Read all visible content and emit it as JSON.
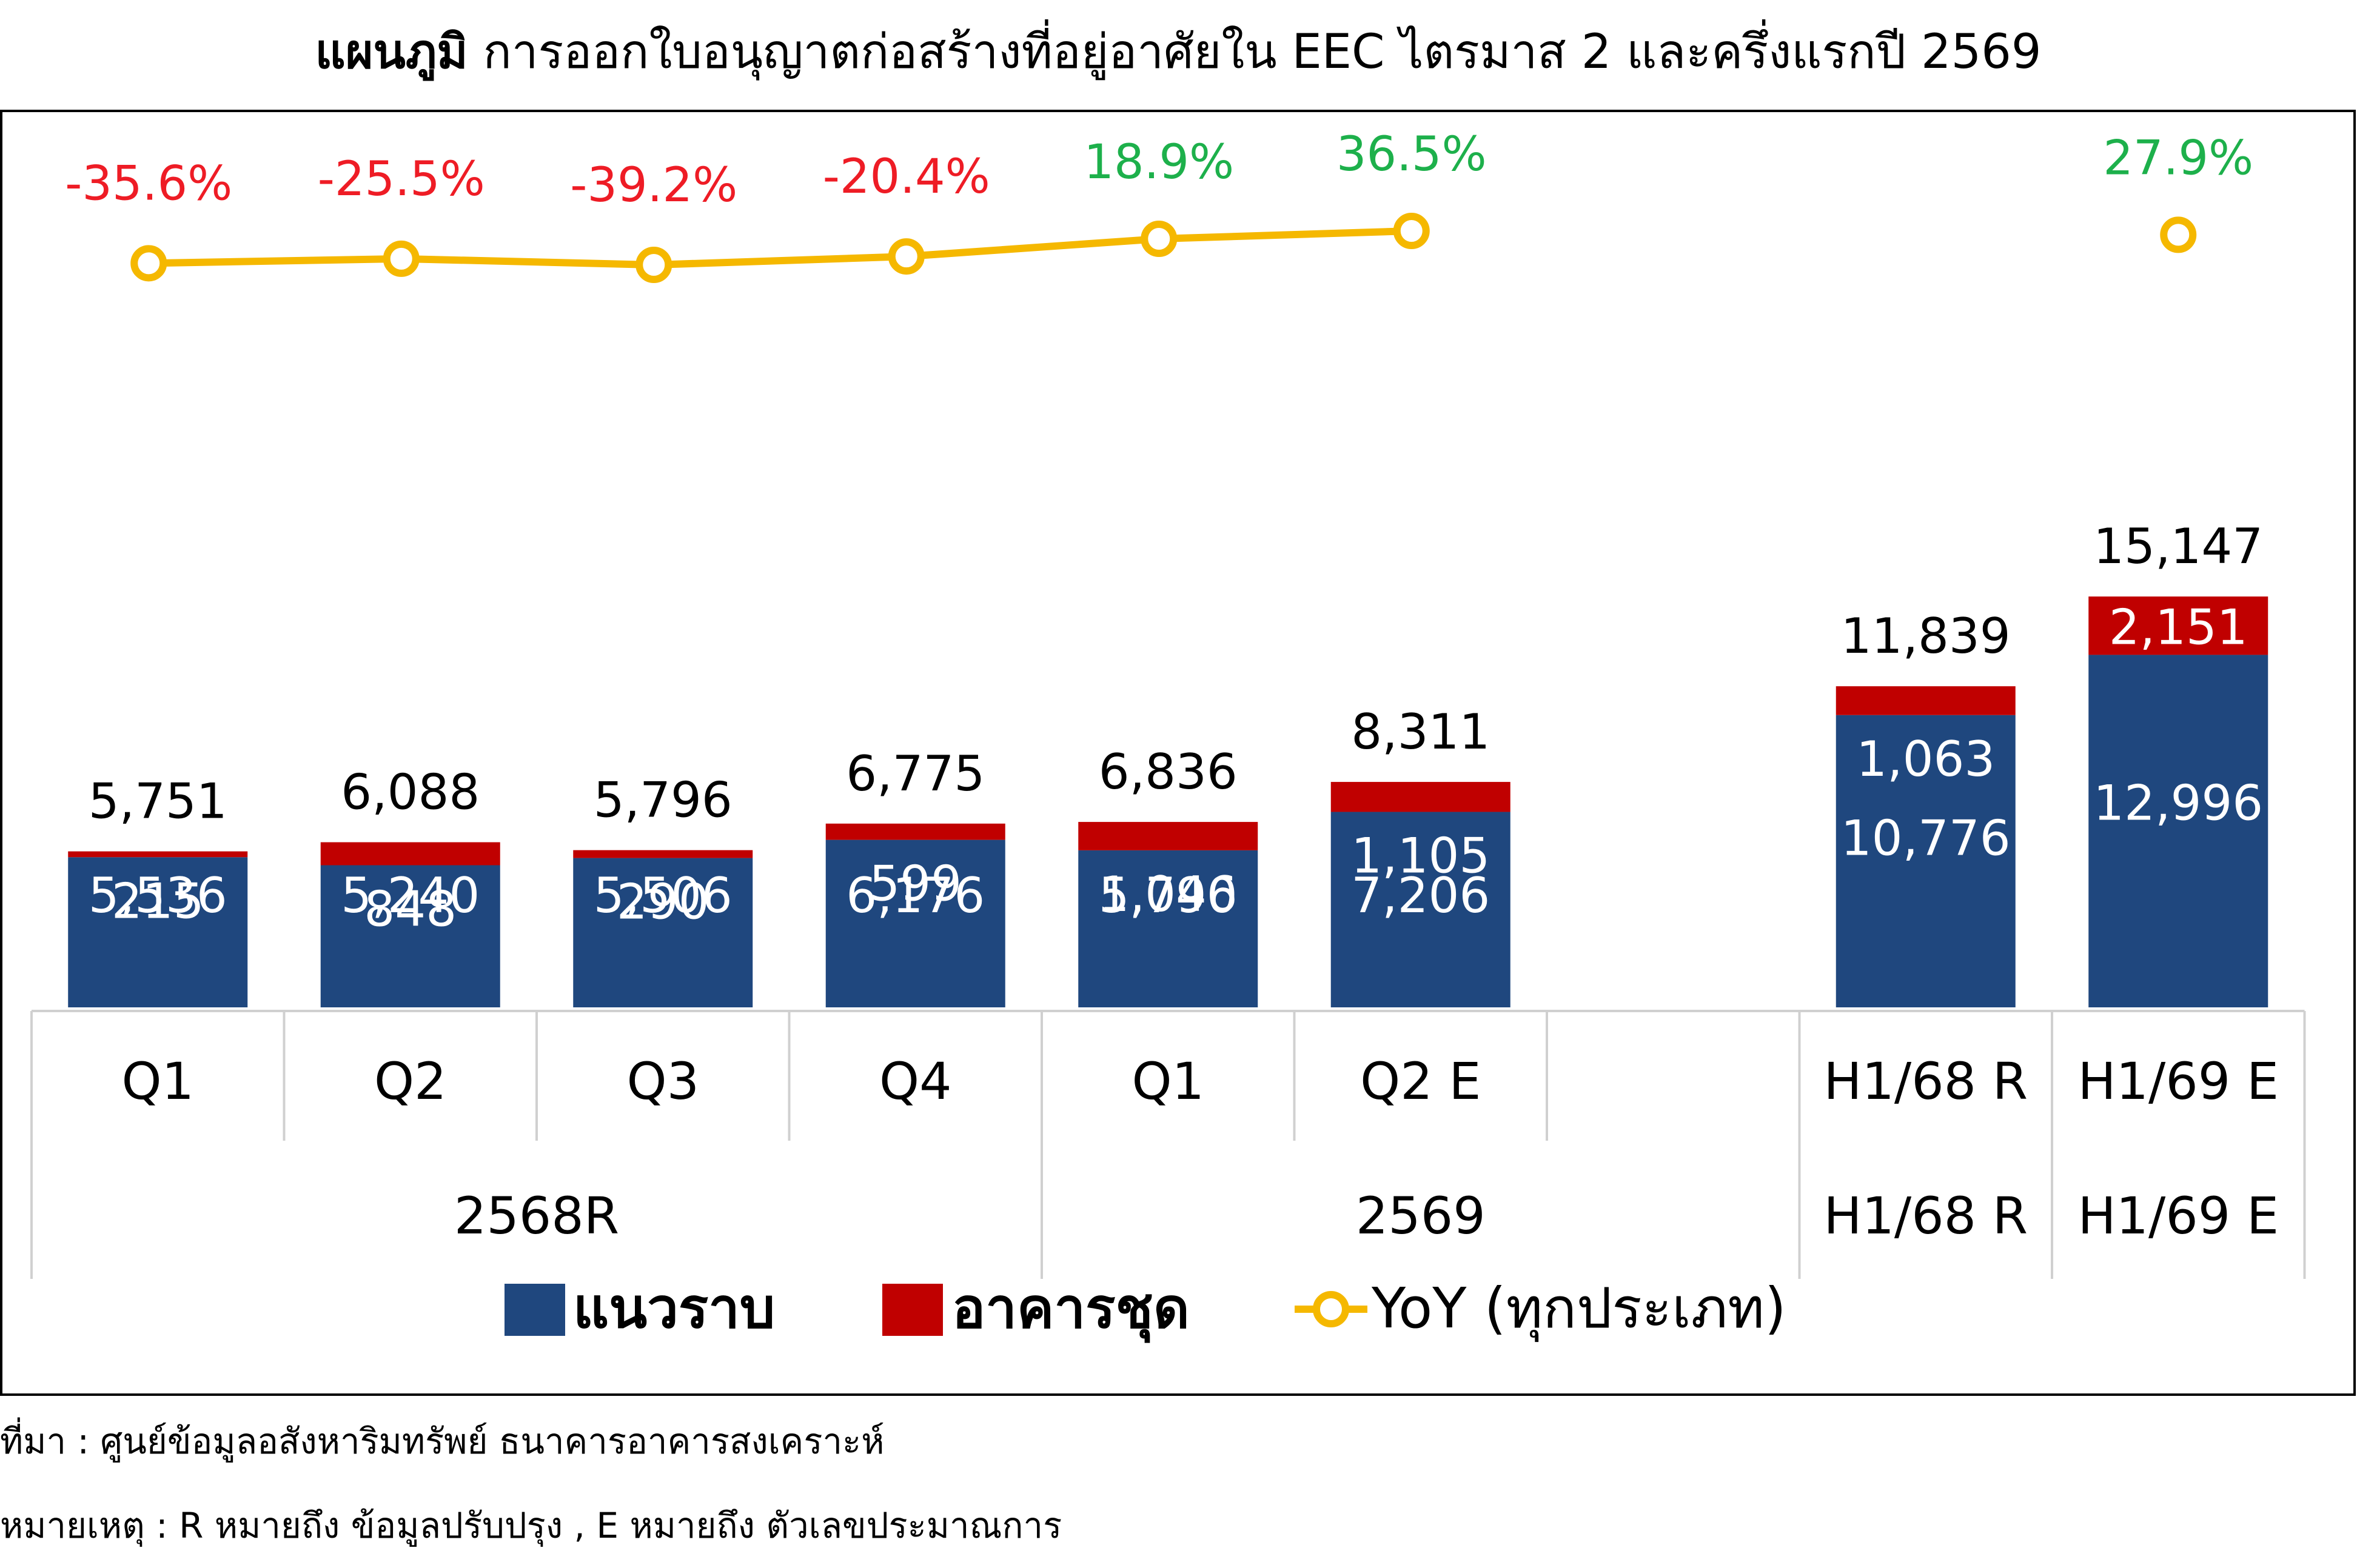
{
  "title": {
    "bold": "แผนภูมิ",
    "rest": " การออกใบอนุญาตก่อสร้างที่อยู่อาศัยใน EEC ไตรมาส 2 และครึ่งแรกปี 2569"
  },
  "footnotes": {
    "source": "ที่มา : ศูนย์ข้อมูลอสังหาริมทรัพย์ ธนาคารอาคารสงเคราะห์",
    "note": "หมายเหตุ : R หมายถึง ข้อมูลปรับปรุง , E หมายถึง ตัวเลขประมาณการ"
  },
  "colors": {
    "lowrise": "#1f477e",
    "condo": "#c00000",
    "yoy_line": "#f5b800",
    "yoy_negative": "#ee1c25",
    "yoy_positive": "#1db04b",
    "frame": "#000000",
    "grid": "#d0d0d0"
  },
  "chart_data": {
    "type": "bar",
    "stacked": true,
    "categories": [
      "Q1",
      "Q2",
      "Q3",
      "Q4",
      "Q1",
      "Q2 E",
      "",
      "H1/68 R",
      "H1/69 E"
    ],
    "groups": [
      {
        "label": "2568R",
        "span": [
          0,
          3
        ]
      },
      {
        "label": "2569",
        "span": [
          4,
          6
        ]
      },
      {
        "label": "H1/68 R",
        "span": [
          7,
          7
        ]
      },
      {
        "label": "H1/69 E",
        "span": [
          8,
          8
        ]
      }
    ],
    "series": [
      {
        "name": "แนวราบ",
        "key": "lowrise",
        "values": [
          5536,
          5240,
          5506,
          6176,
          5790,
          7206,
          null,
          10776,
          12996
        ]
      },
      {
        "name": "อาคารชุด",
        "key": "condo",
        "values": [
          215,
          848,
          290,
          599,
          1046,
          1105,
          null,
          1063,
          2151
        ]
      }
    ],
    "totals": [
      5751,
      6088,
      5796,
      6775,
      6836,
      8311,
      null,
      11839,
      15147
    ],
    "yoy": {
      "name": "YoY (ทุกประเภท)",
      "values": [
        -35.6,
        -25.5,
        -39.2,
        -20.4,
        18.9,
        36.5,
        null,
        null,
        27.9
      ]
    },
    "ylim": [
      0,
      16000
    ],
    "legend_position": "bottom"
  }
}
